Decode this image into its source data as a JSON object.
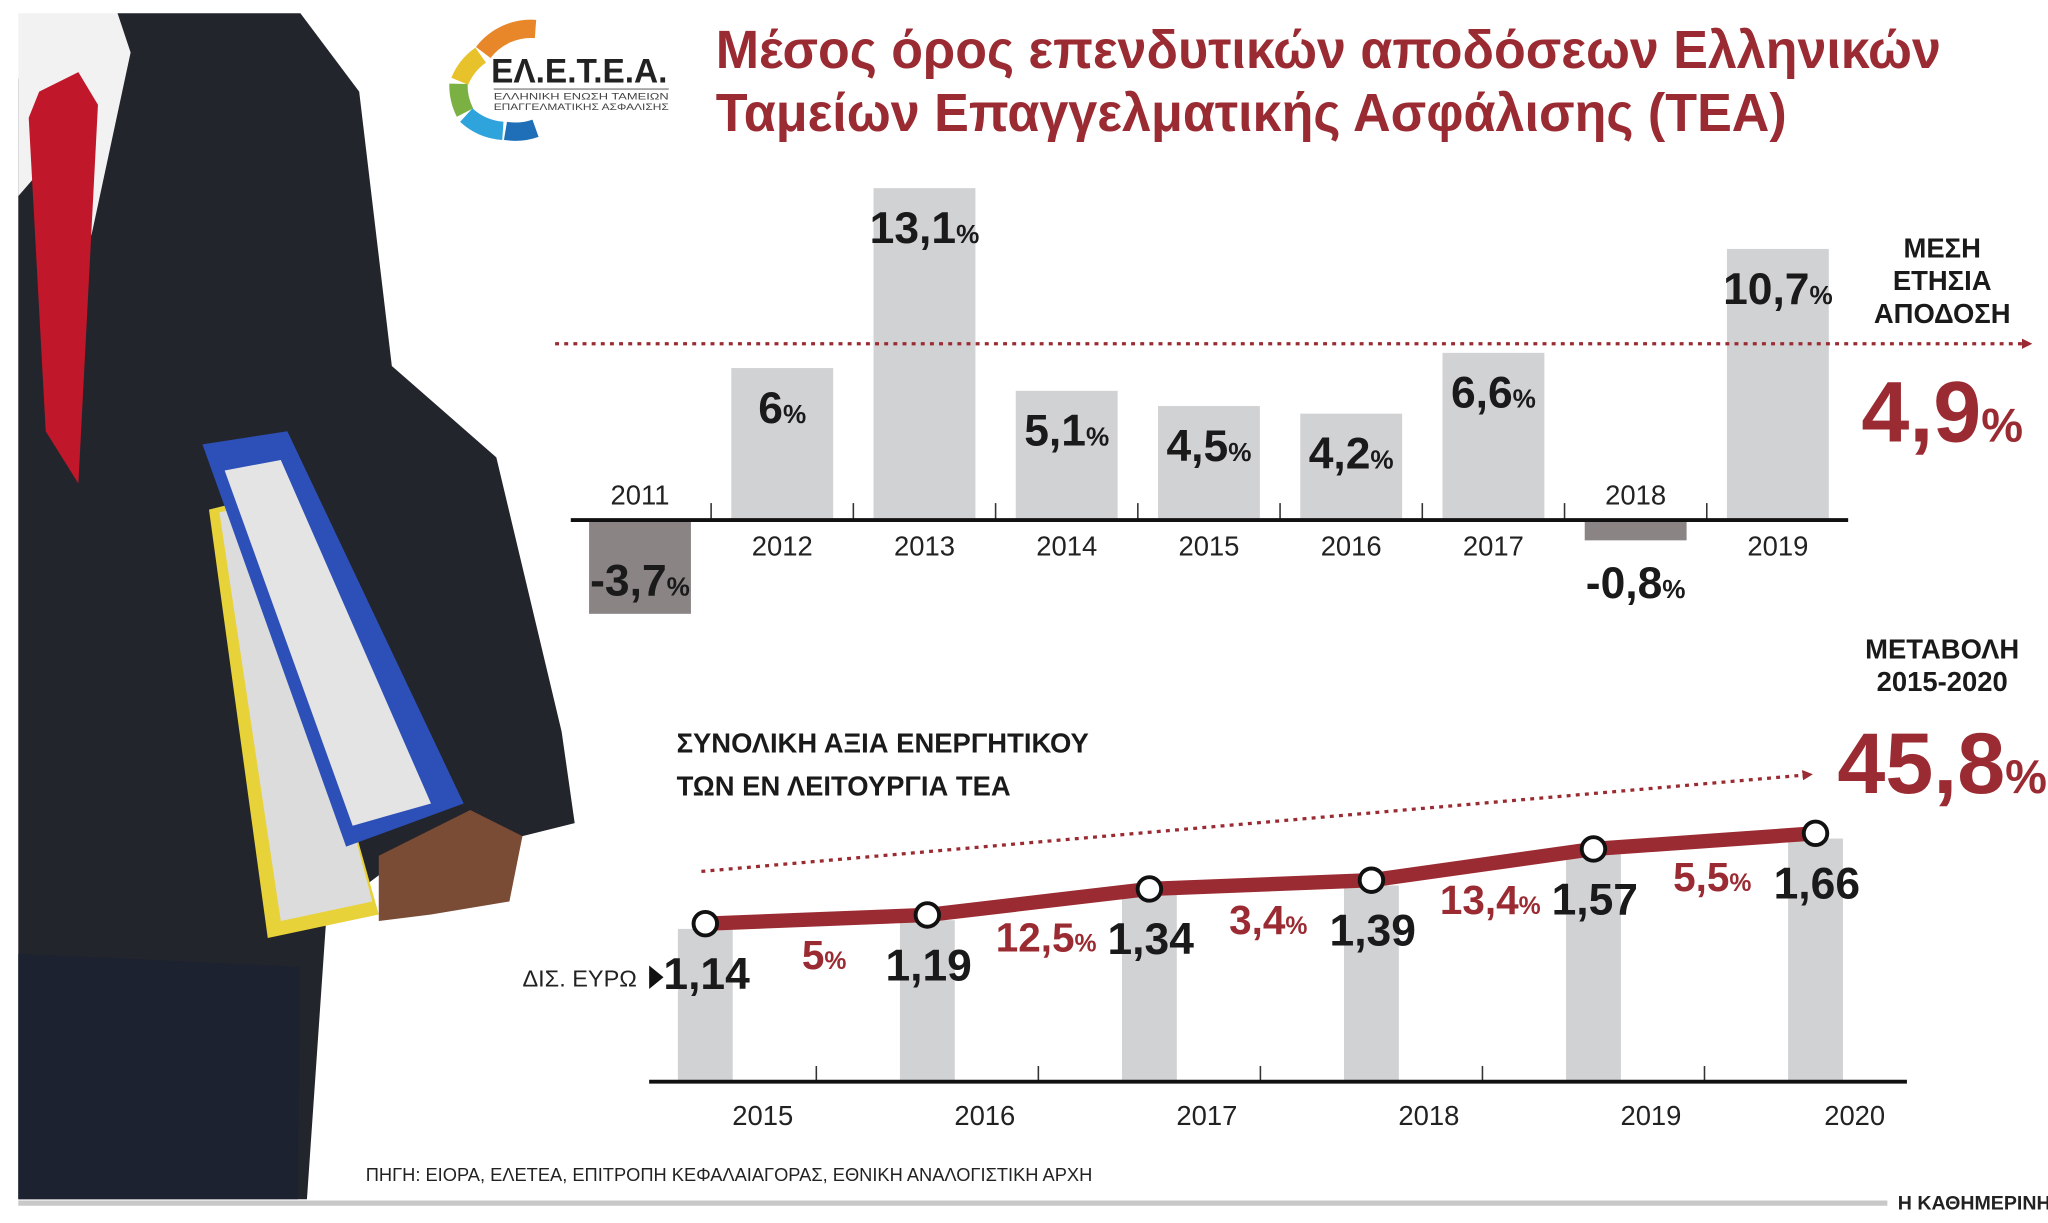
{
  "title_line1": "Μέσος όρος επενδυτικών αποδόσεων Ελληνικών",
  "title_line2": "Ταμείων Επαγγελματικής Ασφάλισης (ΤΕΑ)",
  "logo": {
    "text": "ΕΛ.Ε.Τ.Ε.Α.",
    "sub1": "ΕΛΛΗΝΙΚΗ ΕΝΩΣΗ ΤΑΜΕΙΩΝ",
    "sub2": "ΕΠΑΓΓΕΛΜΑΤΙΚΗΣ ΑΣΦΑΛΙΣΗΣ",
    "colors": [
      "#e8862a",
      "#e7c22b",
      "#7bb043",
      "#2ea3dc",
      "#1e6fb8"
    ]
  },
  "average": {
    "label1": "ΜΕΣΗ",
    "label2": "ΕΤΗΣΙΑ",
    "label3": "ΑΠΟΔΟΣΗ",
    "value": "4,9",
    "unit": "%"
  },
  "change": {
    "label1": "ΜΕΤΑΒΟΛΗ",
    "label2": "2015-2020",
    "value": "45,8",
    "unit": "%"
  },
  "assets_heading1": "ΣΥΝΟΛΙΚΗ ΑΞΙΑ ΕΝΕΡΓΗΤΙΚΟΥ",
  "assets_heading2": "ΤΩΝ ΕΝ ΛΕΙΤΟΥΡΓΙΑ ΤΕΑ",
  "unit_label": "ΔΙΣ. ΕΥΡΩ",
  "source": "ΠΗΓΗ: ΕΙΟΡΑ, ΕΛΕΤΕΑ, ΕΠΙΤΡΟΠΗ ΚΕΦΑΛΑΙΑΓΟΡΑΣ, ΕΘΝΙΚΗ ΑΝΑΛΟΓΙΣΤΙΚΗ ΑΡΧΗ",
  "publisher": "Η ΚΑΘΗΜΕΡΙΝΗ",
  "colors": {
    "accent": "#9b2b32",
    "positive_bar": "#d1d2d4",
    "negative_bar": "#8a8584"
  },
  "chart_data": [
    {
      "type": "bar",
      "title": "Μέσος όρος επενδυτικών αποδόσεων Ελληνικών Ταμείων Επαγγελματικής Ασφάλισης (ΤΕΑ)",
      "categories": [
        "2011",
        "2012",
        "2013",
        "2014",
        "2015",
        "2016",
        "2017",
        "2018",
        "2019"
      ],
      "values": [
        -3.7,
        6,
        13.1,
        5.1,
        4.5,
        4.2,
        6.6,
        -0.8,
        10.7
      ],
      "labels": [
        "-3,7%",
        "6%",
        "13,1%",
        "5,1%",
        "4,5%",
        "4,2%",
        "6,6%",
        "-0,8%",
        "10,7%"
      ],
      "reference_line": {
        "value": 4.9,
        "label": "ΜΕΣΗ ΕΤΗΣΙΑ ΑΠΟΔΟΣΗ 4,9%"
      },
      "unit": "%",
      "grid": false
    },
    {
      "type": "line",
      "title": "ΣΥΝΟΛΙΚΗ ΑΞΙΑ ΕΝΕΡΓΗΤΙΚΟΥ ΤΩΝ ΕΝ ΛΕΙΤΟΥΡΓΙΑ ΤΕΑ",
      "ylabel": "ΔΙΣ. ΕΥΡΩ",
      "categories": [
        "2015",
        "2016",
        "2017",
        "2018",
        "2019",
        "2020"
      ],
      "values": [
        1.14,
        1.19,
        1.34,
        1.39,
        1.57,
        1.66
      ],
      "labels": [
        "1,14",
        "1,19",
        "1,34",
        "1,39",
        "1,57",
        "1,66"
      ],
      "growth_labels": [
        "5%",
        "12,5%",
        "3,4%",
        "13,4%",
        "5,5%"
      ],
      "total_change": "45,8%",
      "grid": false
    }
  ]
}
